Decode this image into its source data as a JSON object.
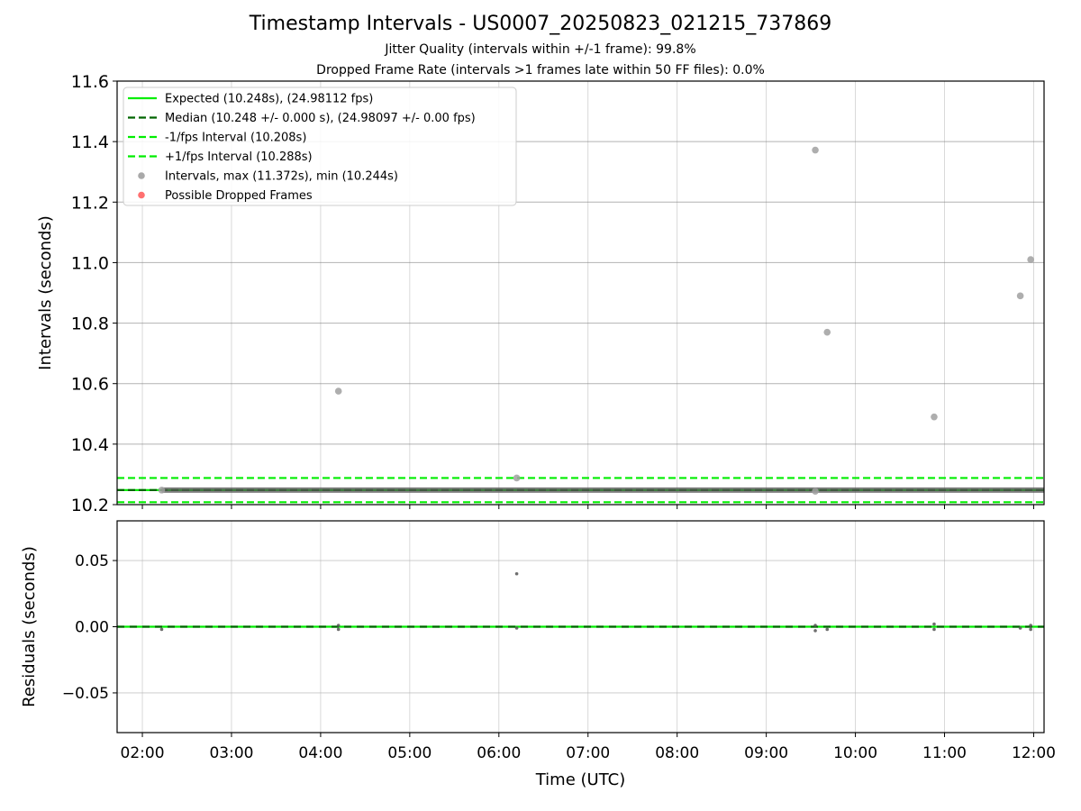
{
  "chart_data": [
    {
      "type": "scatter",
      "title": "Timestamp Intervals - US0007_20250823_021215_737869",
      "subtitles": [
        "Jitter Quality (intervals within +/-1 frame): 99.8%",
        "Dropped Frame Rate (intervals >1 frames late within 50 FF files): 0.0%"
      ],
      "ylabel": "Intervals (seconds)",
      "ylim": [
        10.2,
        11.6
      ],
      "xlim": [
        "01:43",
        "12:07"
      ],
      "yticks": [
        "10.2",
        "10.4",
        "10.6",
        "10.8",
        "11.0",
        "11.2",
        "11.4",
        "11.6"
      ],
      "grid": true,
      "legend_position": "top-left",
      "lines": [
        {
          "name": "Expected (10.248s), (24.98112 fps)",
          "y": 10.248,
          "style": "solid",
          "color": "#00ee00"
        },
        {
          "name": "Median (10.248 +/- 0.000 s), (24.98097 +/- 0.00 fps)",
          "y": 10.248,
          "style": "dashed",
          "color": "#006400"
        },
        {
          "name": "-1/fps Interval (10.208s)",
          "y": 10.208,
          "style": "dashed",
          "color": "#00ee00"
        },
        {
          "name": "+1/fps Interval (10.288s)",
          "y": 10.288,
          "style": "dashed",
          "color": "#00ee00"
        }
      ],
      "series": [
        {
          "name": "Intervals, max (11.372s), min (10.244s)",
          "color": "#a0a0a0",
          "points": [
            {
              "x": "09:33",
              "y": 11.372
            },
            {
              "x": "11:58",
              "y": 11.01
            },
            {
              "x": "11:51",
              "y": 10.89
            },
            {
              "x": "09:41",
              "y": 10.77
            },
            {
              "x": "04:12",
              "y": 10.575
            },
            {
              "x": "10:53",
              "y": 10.49
            },
            {
              "x": "06:12",
              "y": 10.288
            },
            {
              "x": "02:13",
              "y": 10.248
            },
            {
              "x": "09:33",
              "y": 10.244
            }
          ],
          "dense_run": {
            "x_start": "02:13",
            "x_end": "12:07",
            "y": 10.248
          }
        },
        {
          "name": "Possible Dropped Frames",
          "color": "#ff6060",
          "points": []
        }
      ]
    },
    {
      "type": "scatter",
      "ylabel": "Residuals (seconds)",
      "xlabel": "Time (UTC)",
      "ylim": [
        -0.08,
        0.08
      ],
      "xlim": [
        "01:43",
        "12:07"
      ],
      "yticks": [
        "0.05",
        "0.00",
        "−0.05"
      ],
      "xticks": [
        "02:00",
        "03:00",
        "04:00",
        "05:00",
        "06:00",
        "07:00",
        "08:00",
        "09:00",
        "10:00",
        "11:00",
        "12:00"
      ],
      "grid": true,
      "lines": [
        {
          "y": 0.0,
          "style": "solid",
          "color": "#00ee00"
        },
        {
          "y": 0.0,
          "style": "dashed",
          "color": "#006400"
        }
      ],
      "series": [
        {
          "color": "#555555",
          "points": [
            {
              "x": "06:12",
              "y": 0.04
            },
            {
              "x": "02:13",
              "y": -0.002
            },
            {
              "x": "04:12",
              "y": -0.002
            },
            {
              "x": "04:12",
              "y": 0.001
            },
            {
              "x": "06:12",
              "y": -0.001
            },
            {
              "x": "09:33",
              "y": -0.003
            },
            {
              "x": "09:33",
              "y": 0.001
            },
            {
              "x": "09:41",
              "y": -0.002
            },
            {
              "x": "10:53",
              "y": 0.002
            },
            {
              "x": "10:53",
              "y": -0.002
            },
            {
              "x": "11:51",
              "y": -0.001
            },
            {
              "x": "11:58",
              "y": -0.002
            },
            {
              "x": "11:58",
              "y": 0.001
            }
          ]
        }
      ]
    }
  ]
}
